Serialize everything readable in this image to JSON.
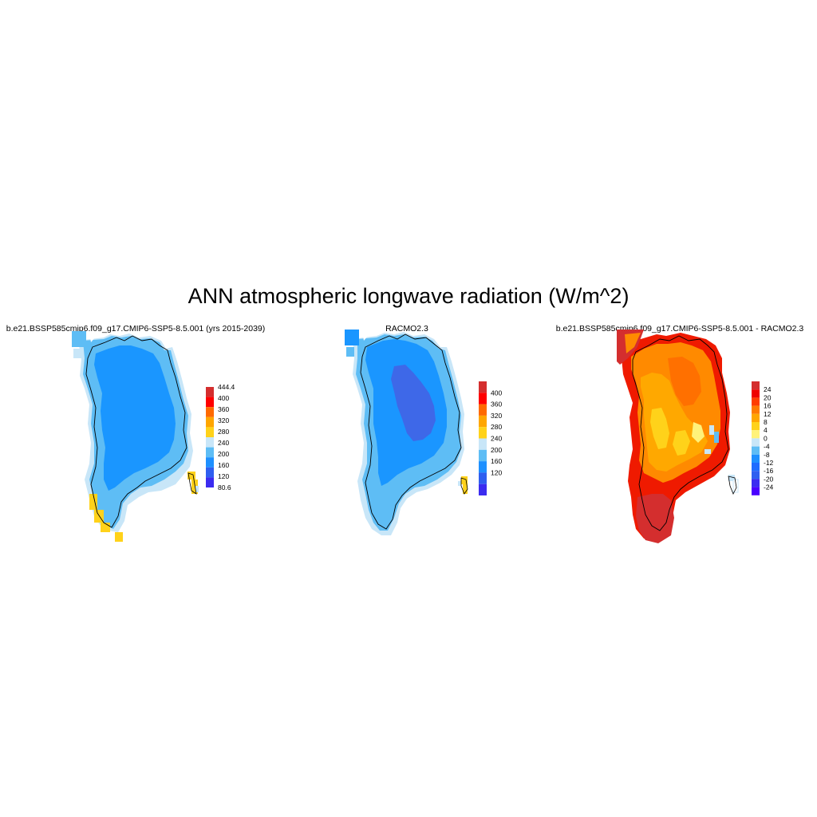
{
  "title": "ANN atmospheric longwave radiation (W/m^2)",
  "panels": [
    {
      "title": "b.e21.BSSP585cmip6.f09_g17.CMIP6-SSP5-8.5.001 (yrs 2015-2039)",
      "colorbar": {
        "labels": [
          "444.4",
          "400",
          "360",
          "320",
          "280",
          "240",
          "200",
          "160",
          "120",
          "80.6"
        ],
        "colors": [
          "#d42e2e",
          "#ff0000",
          "#ff6a00",
          "#ffa600",
          "#ffd21a",
          "#c8e6f8",
          "#5ebdf5",
          "#1e90ff",
          "#2f5ff0",
          "#3b2cf0"
        ]
      }
    },
    {
      "title": "RACMO2.3",
      "colorbar": {
        "labels": [
          "400",
          "360",
          "320",
          "280",
          "240",
          "200",
          "160",
          "120"
        ],
        "colors": [
          "#d42e2e",
          "#ff0000",
          "#ff6a00",
          "#ffa600",
          "#ffd21a",
          "#c8e6f8",
          "#5ebdf5",
          "#1e90ff",
          "#2f5ff0",
          "#3b2cf0"
        ]
      }
    },
    {
      "title": "b.e21.BSSP585cmip6.f09_g17.CMIP6-SSP5-8.5.001 - RACMO2.3",
      "colorbar": {
        "labels": [
          "24",
          "20",
          "16",
          "12",
          "8",
          "4",
          "0",
          "-4",
          "-8",
          "-12",
          "-16",
          "-20",
          "-24"
        ],
        "colors": [
          "#d42e2e",
          "#ef0000",
          "#ff3c00",
          "#ff7a00",
          "#ffa600",
          "#ffd21a",
          "#fff27a",
          "#c8e6f8",
          "#5ebdf5",
          "#1e90ff",
          "#1e6cff",
          "#2f5ff0",
          "#3b2cf0",
          "#4a00ff"
        ]
      }
    }
  ]
}
